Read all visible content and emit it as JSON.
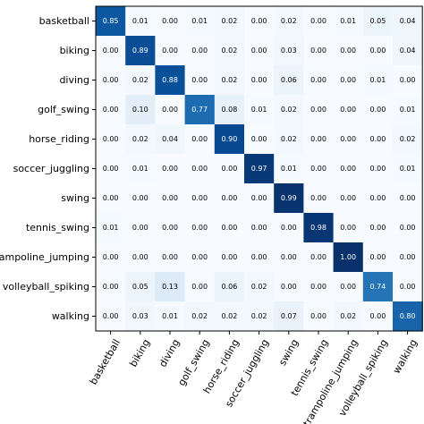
{
  "chart_data": {
    "type": "heatmap",
    "title": "",
    "xlabel": "",
    "ylabel": "",
    "colormap": "Blues",
    "value_range": [
      0,
      1
    ],
    "rows": [
      "basketball",
      "biking",
      "diving",
      "golf_swing",
      "horse_riding",
      "soccer_juggling",
      "swing",
      "tennis_swing",
      "trampoline_jumping",
      "volleyball_spiking",
      "walking"
    ],
    "columns": [
      "basketball",
      "biking",
      "diving",
      "golf_swing",
      "horse_riding",
      "soccer_juggling",
      "swing",
      "tennis_swing",
      "trampoline_jumping",
      "volleyball_spiking",
      "walking"
    ],
    "values": [
      [
        "0.85",
        "0.01",
        "0.00",
        "0.01",
        "0.02",
        "0.00",
        "0.02",
        "0.00",
        "0.01",
        "0.05",
        "0.04"
      ],
      [
        "0.00",
        "0.89",
        "0.00",
        "0.00",
        "0.02",
        "0.00",
        "0.03",
        "0.00",
        "0.00",
        "0.00",
        "0.04"
      ],
      [
        "0.00",
        "0.02",
        "0.88",
        "0.00",
        "0.02",
        "0.00",
        "0.06",
        "0.00",
        "0.00",
        "0.01",
        "0.00"
      ],
      [
        "0.00",
        "0.10",
        "0.00",
        "0.77",
        "0.08",
        "0.01",
        "0.02",
        "0.00",
        "0.00",
        "0.00",
        "0.01"
      ],
      [
        "0.00",
        "0.02",
        "0.04",
        "0.00",
        "0.90",
        "0.00",
        "0.02",
        "0.00",
        "0.00",
        "0.00",
        "0.02"
      ],
      [
        "0.00",
        "0.01",
        "0.00",
        "0.00",
        "0.00",
        "0.97",
        "0.01",
        "0.00",
        "0.00",
        "0.00",
        "0.01"
      ],
      [
        "0.00",
        "0.00",
        "0.00",
        "0.00",
        "0.00",
        "0.00",
        "0.99",
        "0.00",
        "0.00",
        "0.00",
        "0.00"
      ],
      [
        "0.01",
        "0.00",
        "0.00",
        "0.00",
        "0.00",
        "0.00",
        "0.00",
        "0.98",
        "0.00",
        "0.00",
        "0.00"
      ],
      [
        "0.00",
        "0.00",
        "0.00",
        "0.00",
        "0.00",
        "0.00",
        "0.00",
        "0.00",
        "1.00",
        "0.00",
        "0.00"
      ],
      [
        "0.00",
        "0.05",
        "0.13",
        "0.00",
        "0.06",
        "0.02",
        "0.00",
        "0.00",
        "0.00",
        "0.74",
        "0.00"
      ],
      [
        "0.00",
        "0.03",
        "0.01",
        "0.02",
        "0.02",
        "0.02",
        "0.07",
        "0.00",
        "0.02",
        "0.00",
        "0.80"
      ]
    ]
  }
}
